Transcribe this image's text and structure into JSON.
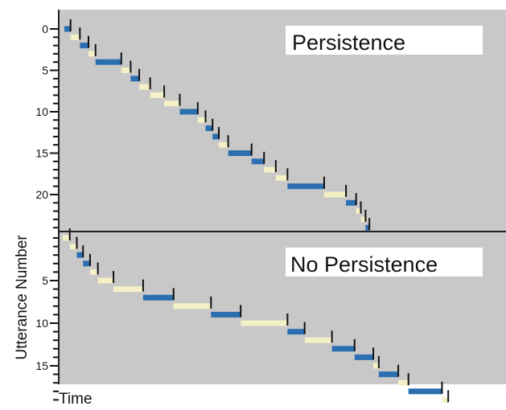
{
  "chart_data": {
    "type": "timeline",
    "xlabel": "Time",
    "ylabel": "Utterance Number",
    "grid": false,
    "colors": {
      "background": "#c8c8c8",
      "speaker_a": "#2b6fb1",
      "speaker_b": "#f4f1c6",
      "marker": "#111111",
      "divider": "#222222"
    },
    "panels": [
      {
        "name": "Persistence",
        "ylim": [
          0,
          24
        ],
        "yticks": [
          0,
          5,
          10,
          15,
          20
        ],
        "segments": [
          {
            "start": 0.2,
            "end": 1.0,
            "color": "speaker_a"
          },
          {
            "start": 1.0,
            "end": 2.2,
            "color": "speaker_b"
          },
          {
            "start": 2.2,
            "end": 3.3,
            "color": "speaker_a"
          },
          {
            "start": 3.3,
            "end": 4.2,
            "color": "speaker_b"
          },
          {
            "start": 4.2,
            "end": 7.5,
            "color": "speaker_a"
          },
          {
            "start": 7.5,
            "end": 8.7,
            "color": "speaker_b"
          },
          {
            "start": 8.7,
            "end": 9.8,
            "color": "speaker_a"
          },
          {
            "start": 9.8,
            "end": 11.2,
            "color": "speaker_b"
          },
          {
            "start": 11.2,
            "end": 13.0,
            "color": "speaker_b"
          },
          {
            "start": 13.0,
            "end": 15.0,
            "color": "speaker_b"
          },
          {
            "start": 15.0,
            "end": 17.3,
            "color": "speaker_a"
          },
          {
            "start": 17.3,
            "end": 18.3,
            "color": "speaker_b"
          },
          {
            "start": 18.3,
            "end": 19.2,
            "color": "speaker_a"
          },
          {
            "start": 19.2,
            "end": 20.0,
            "color": "speaker_a"
          },
          {
            "start": 20.0,
            "end": 21.2,
            "color": "speaker_b"
          },
          {
            "start": 21.2,
            "end": 24.2,
            "color": "speaker_a"
          },
          {
            "start": 24.2,
            "end": 25.8,
            "color": "speaker_a"
          },
          {
            "start": 25.8,
            "end": 27.3,
            "color": "speaker_b"
          },
          {
            "start": 27.3,
            "end": 28.8,
            "color": "speaker_b"
          },
          {
            "start": 28.8,
            "end": 33.5,
            "color": "speaker_a"
          },
          {
            "start": 33.5,
            "end": 36.3,
            "color": "speaker_b"
          },
          {
            "start": 36.3,
            "end": 37.6,
            "color": "speaker_a"
          },
          {
            "start": 37.6,
            "end": 38.2,
            "color": "speaker_b"
          },
          {
            "start": 38.2,
            "end": 38.8,
            "color": "speaker_b"
          },
          {
            "start": 38.8,
            "end": 39.3,
            "color": "speaker_a"
          }
        ]
      },
      {
        "name": "No Persistence",
        "ylim": [
          0,
          19
        ],
        "yticks": [
          5,
          10,
          15
        ],
        "segments": [
          {
            "start": 0.0,
            "end": 0.9,
            "color": "speaker_b"
          },
          {
            "start": 0.9,
            "end": 1.8,
            "color": "speaker_b"
          },
          {
            "start": 1.8,
            "end": 2.6,
            "color": "speaker_a"
          },
          {
            "start": 2.6,
            "end": 3.5,
            "color": "speaker_a"
          },
          {
            "start": 3.5,
            "end": 4.5,
            "color": "speaker_b"
          },
          {
            "start": 4.5,
            "end": 6.5,
            "color": "speaker_b"
          },
          {
            "start": 6.5,
            "end": 10.3,
            "color": "speaker_b"
          },
          {
            "start": 10.3,
            "end": 14.2,
            "color": "speaker_a"
          },
          {
            "start": 14.2,
            "end": 19.0,
            "color": "speaker_b"
          },
          {
            "start": 19.0,
            "end": 22.8,
            "color": "speaker_a"
          },
          {
            "start": 22.8,
            "end": 28.8,
            "color": "speaker_b"
          },
          {
            "start": 28.8,
            "end": 31.0,
            "color": "speaker_a"
          },
          {
            "start": 31.0,
            "end": 34.5,
            "color": "speaker_b"
          },
          {
            "start": 34.5,
            "end": 37.4,
            "color": "speaker_a"
          },
          {
            "start": 37.4,
            "end": 39.8,
            "color": "speaker_a"
          },
          {
            "start": 39.8,
            "end": 40.5,
            "color": "speaker_b"
          },
          {
            "start": 40.5,
            "end": 43.0,
            "color": "speaker_a"
          },
          {
            "start": 43.0,
            "end": 44.3,
            "color": "speaker_b"
          },
          {
            "start": 44.3,
            "end": 48.6,
            "color": "speaker_a"
          },
          {
            "start": 48.6,
            "end": 49.4,
            "color": "speaker_b"
          }
        ]
      }
    ]
  }
}
